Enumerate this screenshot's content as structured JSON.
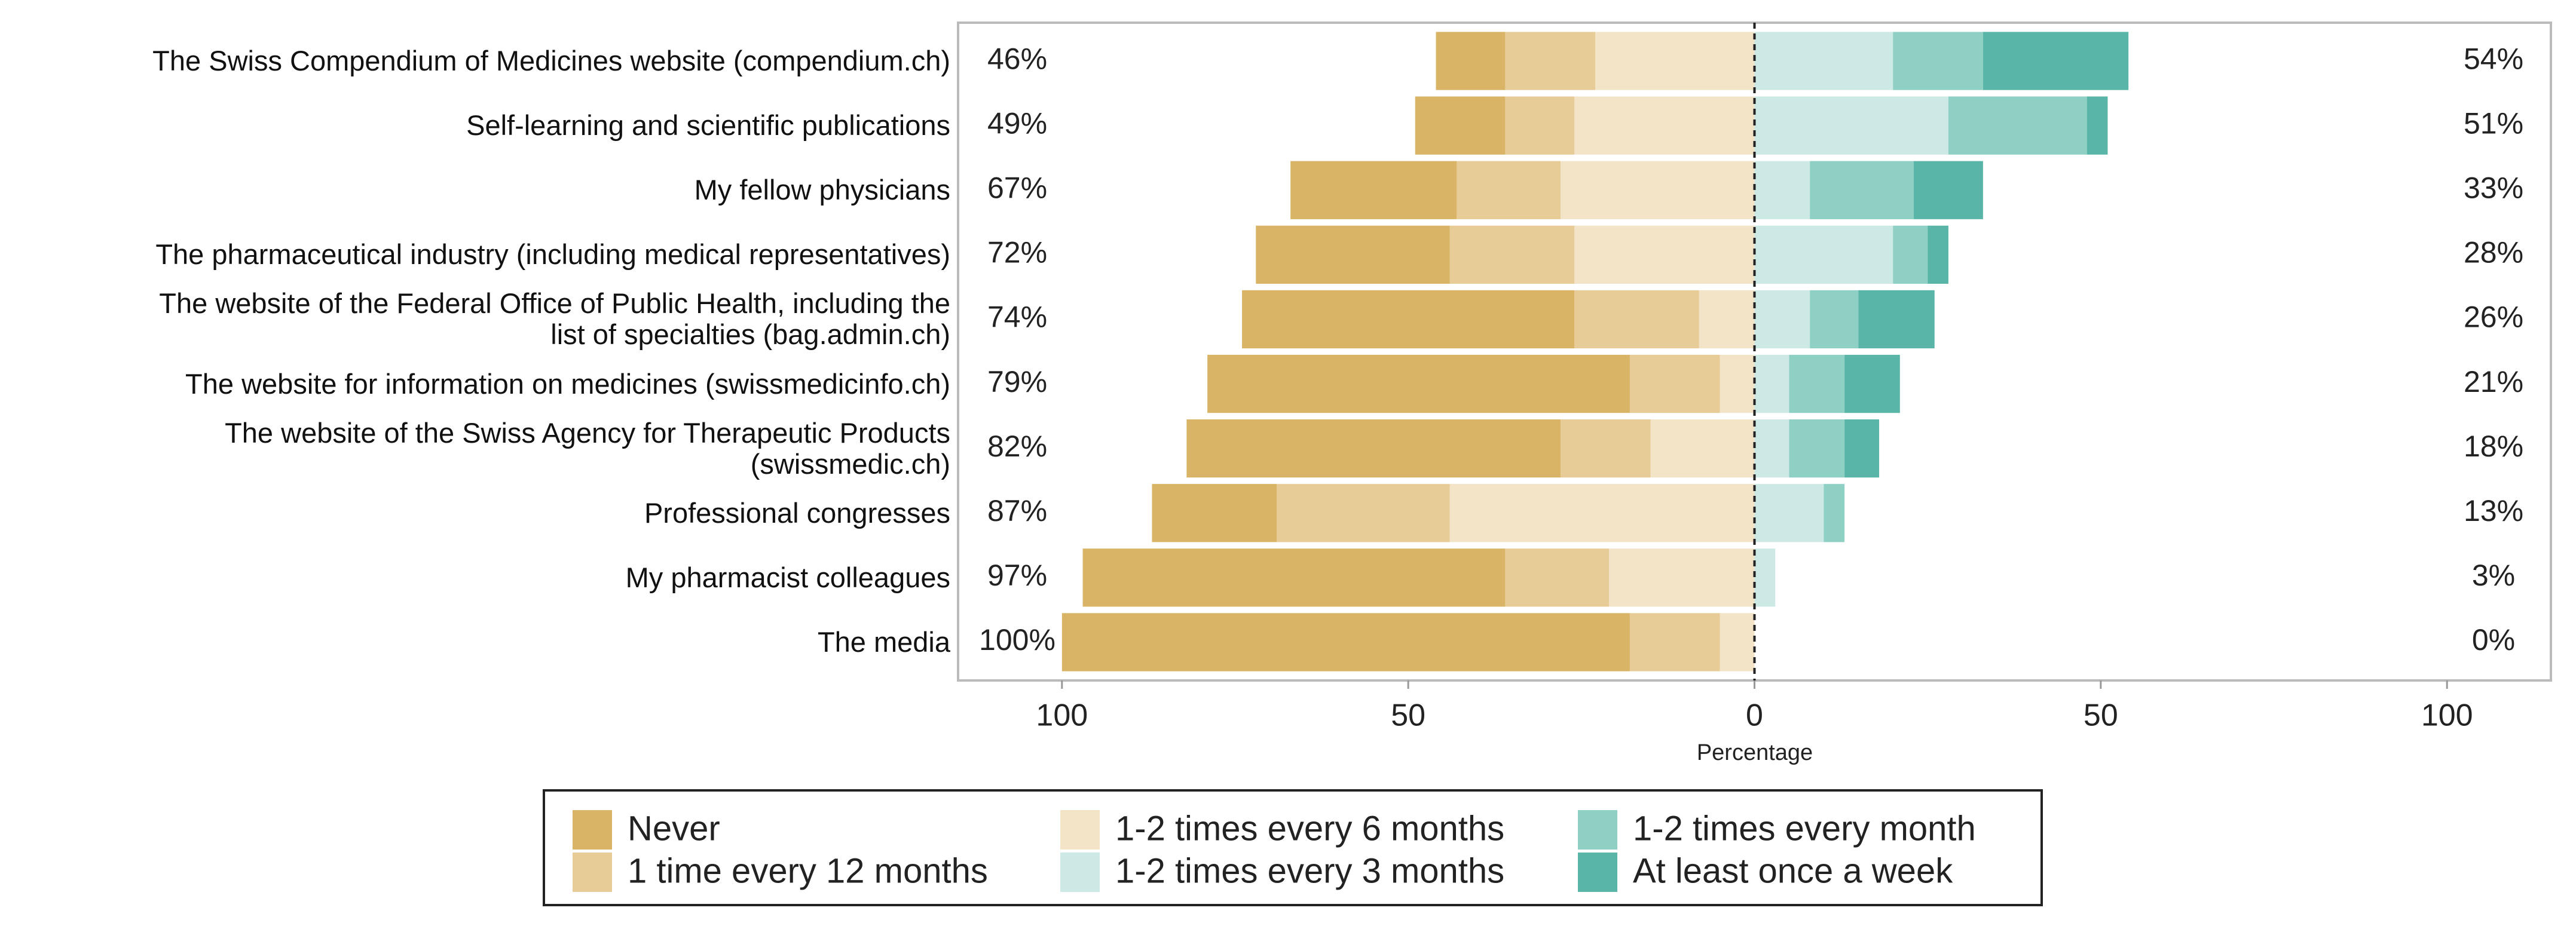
{
  "chart_data": {
    "type": "diverging_bar",
    "x_label": "Percentage",
    "categories": [
      "The Swiss Compendium of Medicines website (compendium.ch)",
      "Self-learning and scientific publications",
      "My fellow physicians",
      "The pharmaceutical industry (including medical representatives)",
      "The website of the Federal Office of Public Health, including the\nlist of specialties (bag.admin.ch)",
      "The website for information on medicines (swissmedicinfo.ch)",
      "The website of the Swiss Agency for Therapeutic Products\n(swissmedic.ch)",
      "Professional congresses",
      "My pharmacist colleagues",
      "The media"
    ],
    "series": [
      {
        "name": "Never",
        "color": "#d9b466",
        "values": [
          -10,
          -13,
          -24,
          -28,
          -48,
          -61,
          -54,
          -18,
          -61,
          -82
        ]
      },
      {
        "name": "1 time every 12 months",
        "color": "#e8cc97",
        "values": [
          -13,
          -10,
          -15,
          -18,
          -18,
          -13,
          -13,
          -25,
          -15,
          -13
        ]
      },
      {
        "name": "1-2 times every 6 months",
        "color": "#f3e4c8",
        "values": [
          -23,
          -26,
          -28,
          -26,
          -8,
          -5,
          -15,
          -44,
          -21,
          -5
        ]
      },
      {
        "name": "1-2 times every 3 months",
        "color": "#cde9e6",
        "values": [
          20,
          28,
          8,
          20,
          8,
          5,
          5,
          10,
          3,
          0
        ]
      },
      {
        "name": "1-2 times every month",
        "color": "#8fd0c4",
        "values": [
          13,
          20,
          15,
          5,
          7,
          8,
          8,
          3,
          0,
          0
        ]
      },
      {
        "name": "At least once a week",
        "color": "#5ab5a9",
        "values": [
          21,
          3,
          10,
          3,
          11,
          8,
          5,
          0,
          0,
          0
        ]
      }
    ],
    "left_labels": [
      "46%",
      "49%",
      "67%",
      "72%",
      "74%",
      "79%",
      "82%",
      "87%",
      "97%",
      "100%"
    ],
    "right_labels": [
      "54%",
      "51%",
      "33%",
      "28%",
      "26%",
      "21%",
      "18%",
      "13%",
      "3%",
      "0%"
    ],
    "xlim": [
      -115,
      115
    ],
    "xticks": [
      {
        "value": -100,
        "label": "100"
      },
      {
        "value": -50,
        "label": "50"
      },
      0,
      50,
      100
    ],
    "legend": "bottom"
  }
}
